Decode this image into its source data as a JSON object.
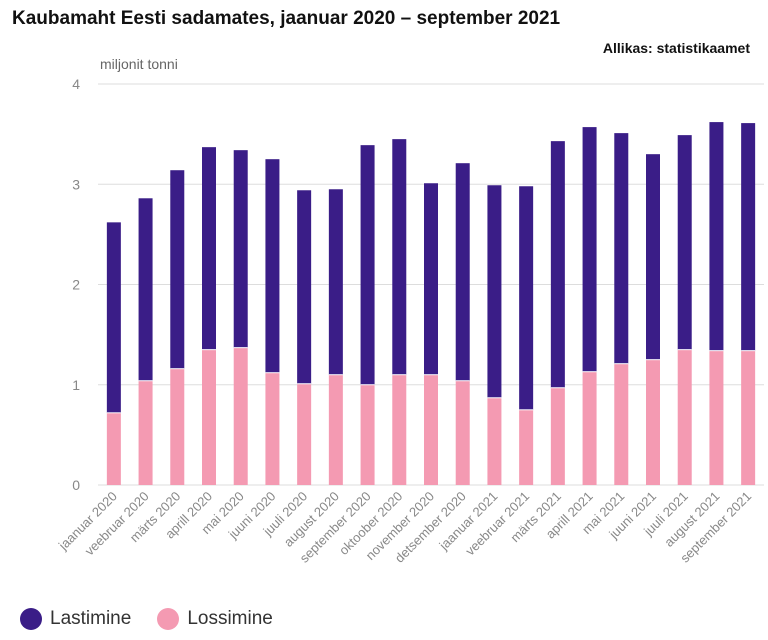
{
  "title": "Kaubamaht Eesti sadamates, jaanuar 2020 – september 2021",
  "source": "Allikas: statistikaamet",
  "colors": {
    "lastimine": "#3a1d87",
    "lossimine": "#f49ab2",
    "grid": "#dddddd",
    "tick": "#888888"
  },
  "chart_data": {
    "type": "bar",
    "stacked": true,
    "title": "Kaubamaht Eesti sadamates, jaanuar 2020 – september 2021",
    "ylabel": "miljonit tonni",
    "xlabel": "",
    "ylim": [
      0,
      4
    ],
    "yticks": [
      "0",
      "1",
      "2",
      "3",
      "4"
    ],
    "grid": true,
    "legend_position": "bottom-left",
    "categories": [
      "jaanuar 2020",
      "veebruar 2020",
      "märts 2020",
      "aprill 2020",
      "mai 2020",
      "juuni 2020",
      "juuli 2020",
      "august 2020",
      "september 2020",
      "oktoober 2020",
      "november 2020",
      "detsember 2020",
      "jaanuar 2021",
      "veebruar 2021",
      "märts 2021",
      "aprill 2021",
      "mai 2021",
      "juuni 2021",
      "juuli 2021",
      "august 2021",
      "september 2021"
    ],
    "series": [
      {
        "name": "Lossimine",
        "values": [
          0.72,
          1.04,
          1.16,
          1.35,
          1.37,
          1.12,
          1.01,
          1.1,
          1.0,
          1.1,
          1.1,
          1.04,
          0.87,
          0.75,
          0.97,
          1.13,
          1.21,
          1.25,
          1.35,
          1.34,
          1.34
        ]
      },
      {
        "name": "Lastimine",
        "values": [
          1.9,
          1.82,
          1.98,
          2.02,
          1.97,
          2.13,
          1.93,
          1.85,
          2.39,
          2.35,
          1.91,
          2.17,
          2.12,
          2.23,
          2.46,
          2.44,
          2.3,
          2.05,
          2.14,
          2.28,
          2.27
        ]
      }
    ]
  },
  "legend": [
    {
      "name": "Lastimine",
      "color": "#3a1d87"
    },
    {
      "name": "Lossimine",
      "color": "#f49ab2"
    }
  ]
}
